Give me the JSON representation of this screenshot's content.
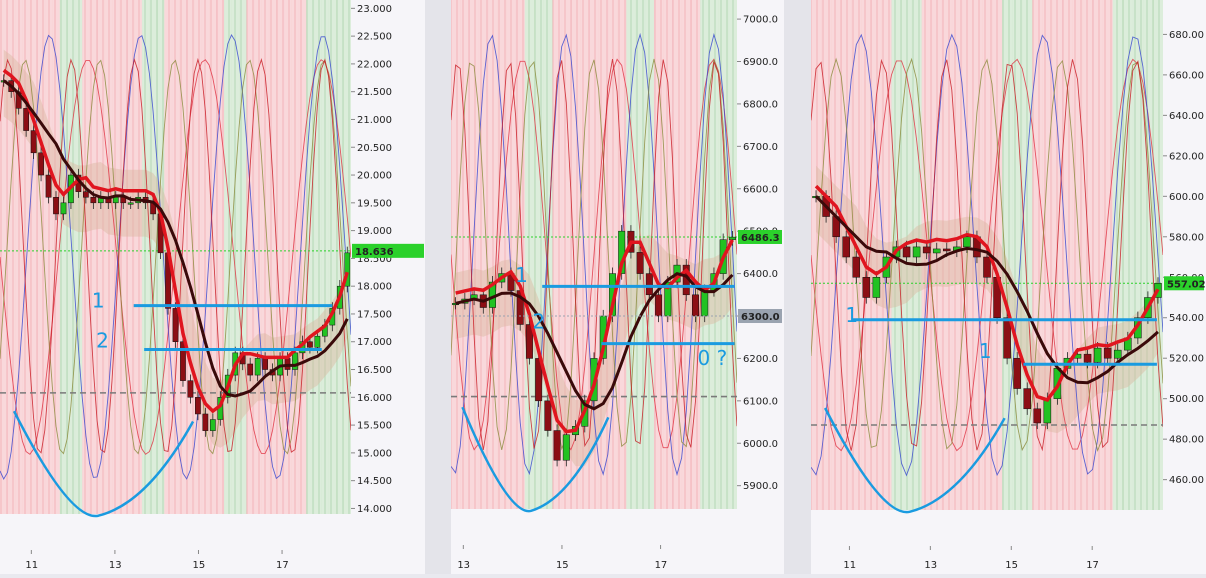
{
  "page": {
    "title": ""
  },
  "colors": {
    "background_panel": "#f6f5f9",
    "axis_background": "#ffffff",
    "bull_candle": "#22c222",
    "bear_candle": "#8c0e14",
    "ma_fast": "#e0151f",
    "ma_slow": "#3a0a0a",
    "pink_zone": "#f7c2c6",
    "green_zone": "#bfe0bf",
    "tan_zone": "#d9b9a0",
    "annotation": "#1a9be0",
    "price_label_green": "#2bd12b",
    "price_label_gray": "#9aa3b0",
    "dashed_level": "#7a7a7a"
  },
  "chart_data": [
    {
      "type": "candlestick",
      "panel": "left",
      "title": "",
      "xlabel": "",
      "ylabel": "",
      "x_ticks": [
        "11",
        "13",
        "15",
        "17"
      ],
      "x_tick_values": [
        11,
        13,
        15,
        17
      ],
      "xlim": [
        10.25,
        18.65
      ],
      "y_ticks": [
        "14.000",
        "14.500",
        "15.000",
        "15.500",
        "16.000",
        "16.500",
        "17.000",
        "17.500",
        "18.000",
        "18.500",
        "19.000",
        "19.500",
        "20.000",
        "20.500",
        "21.000",
        "21.500",
        "22.000",
        "22.500",
        "23.000"
      ],
      "ylim": [
        13.9,
        23.15
      ],
      "last_price": "18.636",
      "last_price_value": 18.636,
      "dashed_level": 16.08,
      "annotations": [
        {
          "text": "1",
          "x": 12.45,
          "y": 17.62
        },
        {
          "text": "2",
          "x": 12.55,
          "y": 16.9
        }
      ],
      "support_lines": [
        {
          "x1": 13.45,
          "x2": 18.2,
          "y": 17.65
        },
        {
          "x1": 13.7,
          "x2": 17.95,
          "y": 16.86
        }
      ],
      "closes": [
        21.7,
        21.5,
        21.2,
        20.8,
        20.4,
        20.0,
        19.6,
        19.3,
        19.5,
        20.0,
        19.7,
        19.6,
        19.5,
        19.6,
        19.5,
        19.6,
        19.5,
        19.5,
        19.6,
        19.5,
        19.3,
        18.6,
        17.6,
        17.0,
        16.3,
        16.0,
        15.7,
        15.4,
        15.6,
        16.0,
        16.4,
        16.8,
        16.6,
        16.4,
        16.7,
        16.5,
        16.4,
        16.7,
        16.5,
        16.8,
        17.0,
        16.9,
        17.1,
        17.3,
        17.6,
        18.0,
        18.6
      ]
    },
    {
      "type": "candlestick",
      "panel": "middle",
      "title": "",
      "xlabel": "",
      "ylabel": "",
      "x_ticks": [
        "13",
        "15",
        "17"
      ],
      "x_tick_values": [
        13,
        15,
        17
      ],
      "xlim": [
        12.75,
        18.55
      ],
      "y_ticks": [
        "5900.0",
        "6000.0",
        "6100.0",
        "6200.0",
        "6300.0",
        "6400.0",
        "6500.0",
        "6600.0",
        "6700.0",
        "6800.0",
        "6900.0",
        "7000.0"
      ],
      "ylim": [
        5845,
        7045
      ],
      "last_price": "6486.3",
      "last_price_value": 6486.3,
      "gray_price": "6300.0",
      "gray_price_value": 6300.0,
      "dashed_level": 6110,
      "annotations": [
        {
          "text": "1",
          "x": 14.05,
          "y": 6380
        },
        {
          "text": "2",
          "x": 14.4,
          "y": 6270
        },
        {
          "text": "0 ?",
          "x": 17.75,
          "y": 6185
        }
      ],
      "support_lines": [
        {
          "x1": 14.6,
          "x2": 18.5,
          "y": 6370
        },
        {
          "x1": 15.8,
          "x2": 18.5,
          "y": 6235
        }
      ],
      "closes": [
        6330,
        6340,
        6350,
        6320,
        6380,
        6400,
        6360,
        6280,
        6200,
        6100,
        6030,
        5960,
        6020,
        6040,
        6100,
        6200,
        6300,
        6400,
        6500,
        6450,
        6400,
        6350,
        6300,
        6380,
        6420,
        6350,
        6300,
        6360,
        6400,
        6480,
        6486
      ]
    },
    {
      "type": "candlestick",
      "panel": "right",
      "title": "",
      "xlabel": "",
      "ylabel": "",
      "x_ticks": [
        "11",
        "13",
        "15",
        "17"
      ],
      "x_tick_values": [
        11,
        13,
        15,
        17
      ],
      "xlim": [
        10.05,
        18.75
      ],
      "y_ticks": [
        "460.00",
        "480.00",
        "500.00",
        "520.00",
        "540.00",
        "560.00",
        "580.00",
        "600.00",
        "620.00",
        "640.00",
        "660.00",
        "680.00"
      ],
      "ylim": [
        445,
        697
      ],
      "last_price": "557.02",
      "last_price_value": 557.02,
      "dashed_level": 487,
      "annotations": [
        {
          "text": "1",
          "x": 10.9,
          "y": 538
        },
        {
          "text": "1",
          "x": 14.2,
          "y": 520
        }
      ],
      "support_lines": [
        {
          "x1": 11.05,
          "x2": 18.6,
          "y": 539
        },
        {
          "x1": 15.3,
          "x2": 18.6,
          "y": 517
        }
      ],
      "closes": [
        600,
        590,
        580,
        570,
        560,
        550,
        560,
        570,
        575,
        570,
        575,
        572,
        574,
        573,
        575,
        580,
        570,
        560,
        540,
        520,
        505,
        495,
        488,
        500,
        515,
        520,
        522,
        518,
        525,
        520,
        524,
        530,
        540,
        550,
        557
      ]
    }
  ]
}
